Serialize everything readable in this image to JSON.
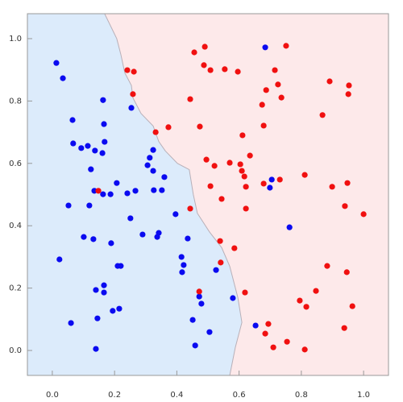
{
  "chart_data": {
    "type": "scatter",
    "xlim": [
      -0.08,
      1.08
    ],
    "ylim": [
      -0.08,
      1.08
    ],
    "xticks": [
      {
        "value": 0,
        "label": "0.0"
      },
      0.2,
      0.4,
      0.6,
      0.8,
      {
        "value": 1,
        "label": "1.0"
      }
    ],
    "yticks": [
      {
        "value": 0,
        "label": "0.0"
      },
      0.2,
      0.4,
      0.6,
      0.8,
      {
        "value": 1,
        "label": "1.0"
      }
    ],
    "boundary": {
      "colors": [
        "#dcebfb",
        "#fde9ea"
      ],
      "x": [
        0.168,
        0.207,
        0.22,
        0.233,
        0.254,
        0.259,
        0.285,
        0.324,
        0.342,
        0.363,
        0.402,
        0.44,
        0.453,
        0.466,
        0.505,
        0.544,
        0.57,
        0.583,
        0.596,
        0.609,
        0.588,
        0.57
      ],
      "y": [
        1.08,
        1.0,
        0.95,
        0.89,
        0.85,
        0.81,
        0.76,
        0.72,
        0.67,
        0.64,
        0.6,
        0.58,
        0.5,
        0.44,
        0.38,
        0.33,
        0.27,
        0.22,
        0.17,
        0.09,
        0.01,
        -0.08
      ]
    },
    "series": [
      {
        "color": "#0a0af0",
        "x": [
          0.013,
          0.034,
          0.163,
          0.254,
          0.065,
          0.166,
          0.067,
          0.093,
          0.168,
          0.114,
          0.137,
          0.161,
          0.324,
          0.313,
          0.306,
          0.324,
          0.124,
          0.36,
          0.135,
          0.352,
          0.326,
          0.207,
          0.267,
          0.241,
          0.187,
          0.163,
          0.052,
          0.119,
          0.251,
          0.396,
          0.29,
          0.337,
          0.101,
          0.132,
          0.189,
          0.435,
          0.342,
          0.023,
          0.21,
          0.22,
          0.415,
          0.422,
          0.526,
          0.417,
          0.166,
          0.166,
          0.14,
          0.215,
          0.194,
          0.479,
          0.472,
          0.06,
          0.145,
          0.451,
          0.505,
          0.459,
          0.14,
          0.58,
          0.684,
          0.705,
          0.699,
          0.762,
          0.653
        ],
        "y": [
          0.922,
          0.873,
          0.803,
          0.778,
          0.739,
          0.726,
          0.664,
          0.649,
          0.669,
          0.656,
          0.641,
          0.633,
          0.643,
          0.618,
          0.594,
          0.576,
          0.581,
          0.556,
          0.512,
          0.514,
          0.514,
          0.537,
          0.512,
          0.504,
          0.501,
          0.501,
          0.465,
          0.465,
          0.424,
          0.437,
          0.372,
          0.364,
          0.364,
          0.357,
          0.344,
          0.359,
          0.377,
          0.292,
          0.271,
          0.271,
          0.3,
          0.274,
          0.258,
          0.251,
          0.209,
          0.186,
          0.194,
          0.134,
          0.127,
          0.15,
          0.173,
          0.088,
          0.103,
          0.098,
          0.059,
          0.016,
          0.005,
          0.168,
          0.972,
          0.548,
          0.522,
          0.395,
          0.08
        ]
      },
      {
        "color": "#f01010",
        "x": [
          0.241,
          0.262,
          0.259,
          0.332,
          0.373,
          0.443,
          0.474,
          0.456,
          0.49,
          0.487,
          0.508,
          0.554,
          0.596,
          0.751,
          0.715,
          0.725,
          0.736,
          0.687,
          0.674,
          0.679,
          0.611,
          0.635,
          0.57,
          0.495,
          0.521,
          0.604,
          0.609,
          0.617,
          0.679,
          0.731,
          0.622,
          0.508,
          0.544,
          0.148,
          0.443,
          0.622,
          0.811,
          0.899,
          0.948,
          0.94,
          1.0,
          0.539,
          0.585,
          0.541,
          0.472,
          0.619,
          0.891,
          0.953,
          0.951,
          0.868,
          0.795,
          0.816,
          0.847,
          0.883,
          0.946,
          0.964,
          0.938,
          0.694,
          0.684,
          0.71,
          0.754,
          0.811
        ],
        "y": [
          0.899,
          0.894,
          0.822,
          0.7,
          0.716,
          0.806,
          0.718,
          0.956,
          0.974,
          0.915,
          0.899,
          0.902,
          0.894,
          0.977,
          0.899,
          0.853,
          0.811,
          0.835,
          0.788,
          0.721,
          0.69,
          0.625,
          0.602,
          0.612,
          0.592,
          0.597,
          0.576,
          0.558,
          0.535,
          0.548,
          0.525,
          0.527,
          0.486,
          0.512,
          0.455,
          0.455,
          0.563,
          0.525,
          0.537,
          0.463,
          0.437,
          0.351,
          0.328,
          0.282,
          0.189,
          0.186,
          0.863,
          0.85,
          0.822,
          0.755,
          0.16,
          0.14,
          0.191,
          0.271,
          0.251,
          0.142,
          0.072,
          0.085,
          0.054,
          0.01,
          0.028,
          0.003
        ]
      }
    ]
  }
}
